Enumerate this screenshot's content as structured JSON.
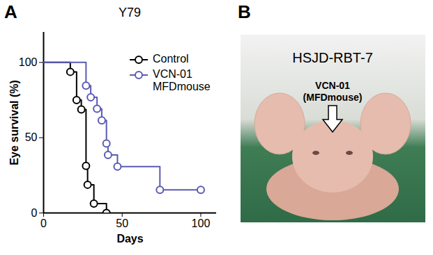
{
  "chart_data": {
    "type": "step",
    "panel_label": "A",
    "title": "Y79",
    "xlabel": "Days",
    "ylabel": "Eye survival (%)",
    "xlim": [
      0,
      110
    ],
    "xticks": [
      0,
      50,
      100
    ],
    "ylim": [
      0,
      120
    ],
    "yticks": [
      0,
      50,
      100
    ],
    "legend": "top-right",
    "series": [
      {
        "name": "Control",
        "color": "#000000",
        "marker": "circle",
        "x": [
          0,
          17,
          21,
          24,
          27,
          28,
          32,
          40
        ],
        "values": [
          100,
          93.75,
          75,
          68.75,
          31.25,
          18.75,
          6.25,
          0
        ]
      },
      {
        "name": "VCN-01 MFDmouse",
        "color": "#5a5ab4",
        "marker": "circle",
        "x": [
          0,
          27,
          30,
          34,
          37,
          40,
          41,
          47,
          74,
          100
        ],
        "values": [
          100,
          84.6,
          76.9,
          69.2,
          61.5,
          46.2,
          38.5,
          30.8,
          15.4,
          15.4
        ]
      }
    ]
  },
  "image_panel": {
    "panel_label": "B",
    "title": "HSJD-RBT-7",
    "annotation": "VCN-01 (MFDmouse)"
  }
}
